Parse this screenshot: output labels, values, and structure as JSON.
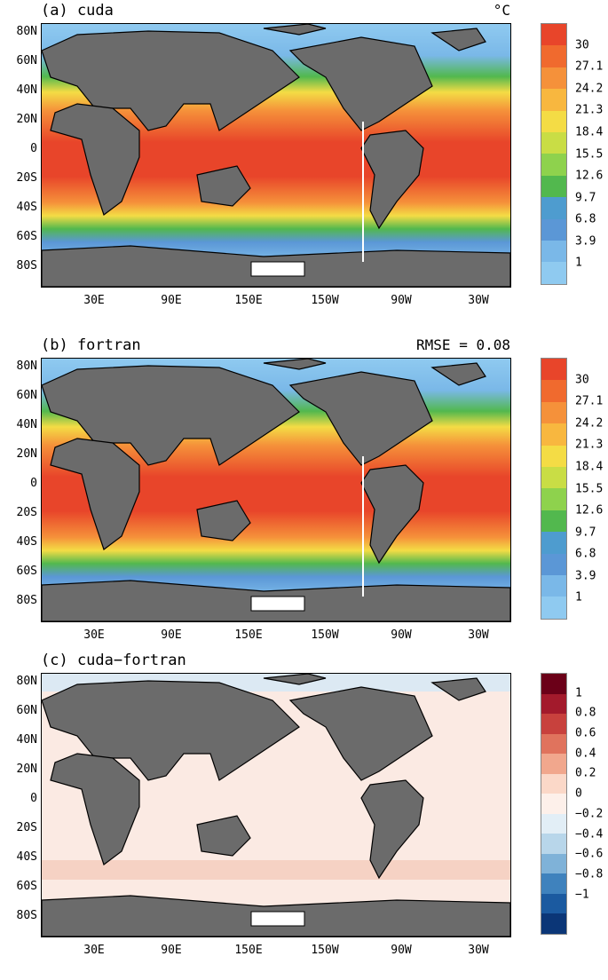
{
  "panels": [
    {
      "title": "(a) cuda",
      "right_label": "°C",
      "colorbar": {
        "labels": [
          "30",
          "27.1",
          "24.2",
          "21.3",
          "18.4",
          "15.5",
          "12.6",
          "9.7",
          "6.8",
          "3.9",
          "1"
        ],
        "colors": [
          "#e8452a",
          "#f06a2e",
          "#f5913a",
          "#f8b73f",
          "#f4dc45",
          "#c9dd45",
          "#8ed24d",
          "#52b84e",
          "#4e9ccf",
          "#5b97d6",
          "#7ab8e8",
          "#8fcaf0"
        ]
      }
    },
    {
      "title": "(b) fortran",
      "right_label": "RMSE = 0.08",
      "colorbar": {
        "labels": [
          "30",
          "27.1",
          "24.2",
          "21.3",
          "18.4",
          "15.5",
          "12.6",
          "9.7",
          "6.8",
          "3.9",
          "1"
        ],
        "colors": [
          "#e8452a",
          "#f06a2e",
          "#f5913a",
          "#f8b73f",
          "#f4dc45",
          "#c9dd45",
          "#8ed24d",
          "#52b84e",
          "#4e9ccf",
          "#5b97d6",
          "#7ab8e8",
          "#8fcaf0"
        ]
      }
    },
    {
      "title": "(c) cuda−fortran",
      "right_label": "",
      "colorbar": {
        "labels": [
          "1",
          "0.8",
          "0.6",
          "0.4",
          "0.2",
          "0",
          "−0.2",
          "−0.4",
          "−0.6",
          "−0.8",
          "−1"
        ],
        "colors": [
          "#6b0018",
          "#a31a2c",
          "#c8413d",
          "#e0735d",
          "#f1a78d",
          "#fbd8c8",
          "#fdf0ea",
          "#e2eef6",
          "#b8d6ea",
          "#7fb2d8",
          "#3f82bd",
          "#1b5aa0",
          "#0b3677"
        ]
      }
    }
  ],
  "y_ticks": [
    "80N",
    "60N",
    "40N",
    "20N",
    "0",
    "20S",
    "40S",
    "60S",
    "80S"
  ],
  "x_ticks": [
    "30E",
    "90E",
    "150E",
    "150W",
    "90W",
    "30W"
  ]
}
